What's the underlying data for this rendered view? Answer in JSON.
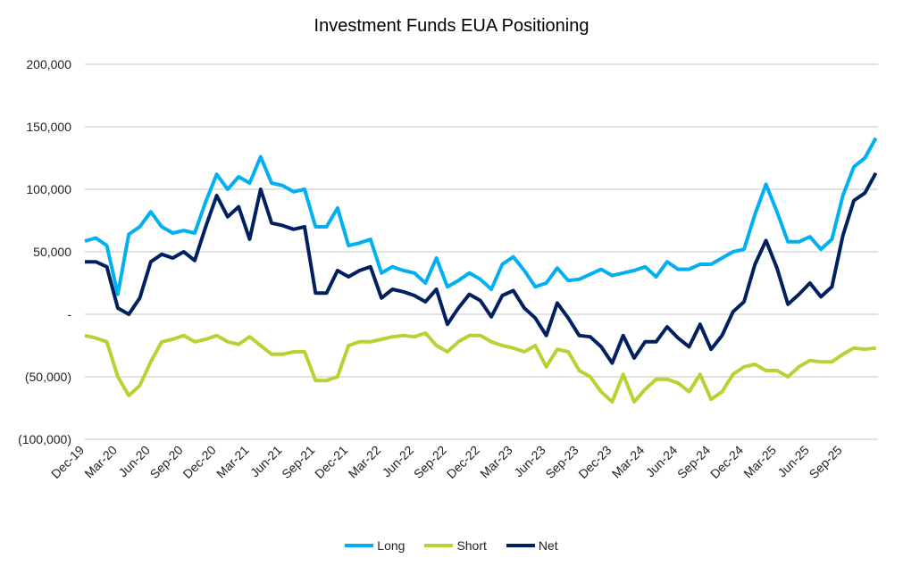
{
  "chart_data": {
    "type": "line",
    "title": "Investment Funds EUA Positioning",
    "xlabel": "",
    "ylabel": "",
    "ylim": [
      -100000,
      200000
    ],
    "yticks": [
      200000,
      150000,
      100000,
      50000,
      0,
      -50000,
      -100000
    ],
    "ytick_labels": [
      "200,000",
      "150,000",
      "100,000",
      "50,000",
      "-",
      "(50,000)",
      "(100,000)"
    ],
    "xtick_labels": [
      "Dec-19",
      "Mar-20",
      "Jun-20",
      "Sep-20",
      "Dec-20",
      "Mar-21",
      "Jun-21",
      "Sep-21",
      "Dec-21",
      "Mar-22",
      "Jun-22",
      "Sep-22",
      "Dec-22",
      "Mar-23",
      "Jun-23",
      "Sep-23",
      "Dec-23",
      "Mar-24",
      "Jun-24",
      "Sep-24",
      "Dec-24",
      "Mar-25",
      "Jun-25",
      "Sep-25"
    ],
    "grid": true,
    "legend": "bottom",
    "x": [
      "2019-12",
      "2020-01",
      "2020-02",
      "2020-03",
      "2020-04",
      "2020-05",
      "2020-06",
      "2020-07",
      "2020-08",
      "2020-09",
      "2020-10",
      "2020-11",
      "2020-12",
      "2021-01",
      "2021-02",
      "2021-03",
      "2021-04",
      "2021-05",
      "2021-06",
      "2021-07",
      "2021-08",
      "2021-09",
      "2021-10",
      "2021-11",
      "2021-12",
      "2022-01",
      "2022-02",
      "2022-03",
      "2022-04",
      "2022-05",
      "2022-06",
      "2022-07",
      "2022-08",
      "2022-09",
      "2022-10",
      "2022-11",
      "2022-12",
      "2023-01",
      "2023-02",
      "2023-03",
      "2023-04",
      "2023-05",
      "2023-06",
      "2023-07",
      "2023-08",
      "2023-09",
      "2023-10",
      "2023-11",
      "2023-12",
      "2024-01",
      "2024-02",
      "2024-03",
      "2024-04",
      "2024-05",
      "2024-06",
      "2024-07",
      "2024-08",
      "2024-09",
      "2024-10",
      "2024-11",
      "2024-12",
      "2025-01",
      "2025-02",
      "2025-03",
      "2025-04",
      "2025-05",
      "2025-06",
      "2025-07",
      "2025-08",
      "2025-09",
      "2025-10",
      "2025-11",
      "2025-12"
    ],
    "series": [
      {
        "name": "Long",
        "color": "#00B0F0",
        "values": [
          58600,
          61000,
          55000,
          16000,
          64000,
          70000,
          82000,
          70000,
          65000,
          67000,
          65000,
          90000,
          112000,
          100000,
          110000,
          105000,
          126000,
          105000,
          103000,
          98000,
          100000,
          70000,
          70000,
          85000,
          55000,
          57000,
          60000,
          33000,
          38000,
          35000,
          33000,
          25000,
          45000,
          22000,
          27000,
          33000,
          28000,
          20000,
          40000,
          46000,
          35000,
          22000,
          25000,
          37000,
          27000,
          28000,
          32000,
          36000,
          31000,
          33000,
          35000,
          38000,
          30000,
          42000,
          36000,
          36000,
          40000,
          40000,
          45000,
          50000,
          52000,
          80000,
          104000,
          82000,
          58000,
          58000,
          62000,
          52000,
          60000,
          95000,
          118000,
          125000,
          141000
        ]
      },
      {
        "name": "Short",
        "color": "#B7D233",
        "values": [
          -17000,
          -19000,
          -22000,
          -50000,
          -65000,
          -57000,
          -38000,
          -22000,
          -20000,
          -17000,
          -22000,
          -20000,
          -17000,
          -22000,
          -24000,
          -18000,
          -25000,
          -32000,
          -32000,
          -30000,
          -30000,
          -53000,
          -53000,
          -50000,
          -25000,
          -22000,
          -22000,
          -20000,
          -18000,
          -17000,
          -18000,
          -15000,
          -25000,
          -30000,
          -22000,
          -17000,
          -17000,
          -22000,
          -25000,
          -27000,
          -30000,
          -25000,
          -42000,
          -28000,
          -30000,
          -45000,
          -50000,
          -62000,
          -70000,
          -48000,
          -70000,
          -60000,
          -52000,
          -52000,
          -55000,
          -62000,
          -48000,
          -68000,
          -62000,
          -48000,
          -42000,
          -40000,
          -45000,
          -45000,
          -50000,
          -42000,
          -37000,
          -38000,
          -38000,
          -32000,
          -27000,
          -28000,
          -27000
        ]
      },
      {
        "name": "Net",
        "color": "#002060",
        "values": [
          42000,
          42000,
          38000,
          5000,
          0,
          13000,
          42000,
          48000,
          45000,
          50000,
          43000,
          70000,
          95000,
          78000,
          86000,
          60000,
          100000,
          73000,
          71000,
          68000,
          70000,
          17000,
          17000,
          35000,
          30000,
          35000,
          38000,
          13000,
          20000,
          18000,
          15000,
          10000,
          20000,
          -8000,
          5000,
          16000,
          11000,
          -2000,
          15000,
          19000,
          5000,
          -3000,
          -17000,
          9000,
          -3000,
          -17000,
          -18000,
          -26000,
          -39000,
          -17000,
          -35000,
          -22000,
          -22000,
          -10000,
          -19000,
          -26000,
          -8000,
          -28000,
          -17000,
          2000,
          10000,
          40000,
          59000,
          37000,
          8000,
          16000,
          25000,
          14000,
          22000,
          63000,
          91000,
          97000,
          113000
        ]
      }
    ]
  }
}
